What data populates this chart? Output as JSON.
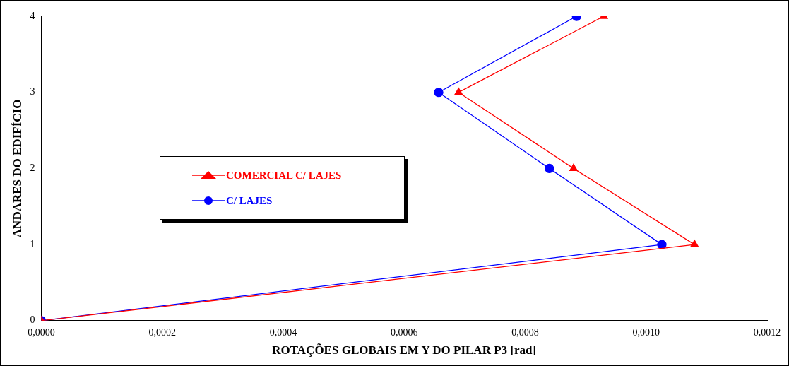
{
  "chart_data": {
    "type": "line",
    "xlabel": "ROTAÇÕES GLOBAIS EM Y DO PILAR P3 [rad]",
    "ylabel": "ANDARES DO EDIFÍCIO",
    "xlim": [
      0,
      0.0012
    ],
    "xticks": [
      {
        "value": 0,
        "label": "0,0000"
      },
      {
        "value": 0.0002,
        "label": "0,0002"
      },
      {
        "value": 0.0004,
        "label": "0,0004"
      },
      {
        "value": 0.0006,
        "label": "0,0006"
      },
      {
        "value": 0.0008,
        "label": "0,0008"
      },
      {
        "value": 0.001,
        "label": "0,0010"
      },
      {
        "value": 0.0012,
        "label": "0,0012"
      }
    ],
    "ylim": [
      0,
      4
    ],
    "yticks": [
      0,
      1,
      2,
      3,
      4
    ],
    "grid": false,
    "legend": "center",
    "line_style": "solid",
    "series": [
      {
        "name": "COMERCIAL C/ LAJES",
        "color": "#ff0000",
        "marker": "triangle",
        "x": [
          0,
          0.00108,
          0.00088,
          0.00069,
          0.00093
        ],
        "values": [
          0,
          1,
          2,
          3,
          4
        ]
      },
      {
        "name": "C/ LAJES",
        "color": "#0000ff",
        "marker": "circle",
        "x": [
          0,
          0.001026,
          0.00084,
          0.000657,
          0.000885
        ],
        "values": [
          0,
          1,
          2,
          3,
          4
        ]
      }
    ]
  }
}
